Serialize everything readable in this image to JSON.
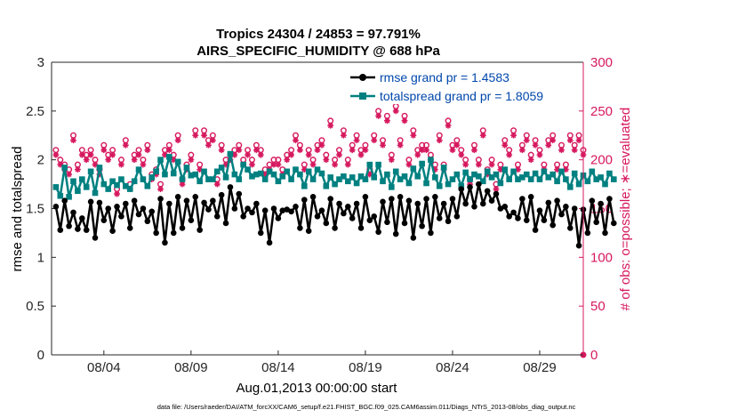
{
  "chart_data": {
    "type": "line",
    "title_line1": "Tropics 24304 / 24853 = 97.791%",
    "title_line2": "AIRS_SPECIFIC_HUMIDITY @ 688 hPa",
    "xlabel": "Aug.01,2013 00:00:00 start",
    "ylabel_left": "rmse and totalspread",
    "ylabel_right": "# of obs: o=possible; ∗=evaluated",
    "footer": "data file: /Users/raeder/DAI/ATM_forcXX/CAM6_setup/f.e21.FHIST_BGC.f09_025.CAM6assim.011/Diags_NTrS_2013-08/obs_diag_output.nc",
    "x_range_days": [
      1,
      31.5
    ],
    "ylim_left": [
      0,
      3
    ],
    "ylim_right": [
      0,
      300
    ],
    "left_ticks": [
      "0",
      "0.5",
      "1",
      "1.5",
      "2",
      "2.5",
      "3"
    ],
    "right_ticks": [
      "0",
      "50",
      "100",
      "150",
      "200",
      "250",
      "300"
    ],
    "x_ticks": [
      {
        "day": 4,
        "label": "08/04"
      },
      {
        "day": 9,
        "label": "08/09"
      },
      {
        "day": 14,
        "label": "08/14"
      },
      {
        "day": 19,
        "label": "08/19"
      },
      {
        "day": 24,
        "label": "08/24"
      },
      {
        "day": 29,
        "label": "08/29"
      }
    ],
    "colors": {
      "rmse": "#000000",
      "spread": "#008080",
      "obs": "#d6185e",
      "axis_left": "#262626",
      "legend_text": "#0047ab"
    },
    "x_start_day": 1.25,
    "x_step_day": 0.25,
    "series": [
      {
        "name": "rmse",
        "legend": "rmse grand pr = 1.4583",
        "values": [
          1.52,
          1.28,
          1.58,
          1.32,
          1.46,
          1.29,
          1.4,
          1.28,
          1.57,
          1.2,
          1.56,
          1.38,
          1.5,
          1.27,
          1.52,
          1.42,
          1.55,
          1.3,
          1.58,
          1.44,
          1.5,
          1.37,
          1.47,
          1.25,
          1.6,
          1.15,
          1.55,
          1.25,
          1.62,
          1.3,
          1.58,
          1.38,
          1.62,
          1.28,
          1.56,
          1.49,
          1.58,
          1.42,
          1.64,
          1.35,
          1.72,
          1.5,
          1.65,
          1.42,
          1.5,
          1.46,
          1.55,
          1.25,
          1.48,
          1.15,
          1.5,
          1.4,
          1.48,
          1.49,
          1.47,
          1.52,
          1.3,
          1.59,
          1.27,
          1.62,
          1.42,
          1.48,
          1.35,
          1.6,
          1.3,
          1.55,
          1.45,
          1.52,
          1.4,
          1.55,
          1.3,
          1.62,
          1.38,
          1.42,
          1.26,
          1.57,
          1.36,
          1.6,
          1.24,
          1.62,
          1.35,
          1.58,
          1.2,
          1.55,
          1.32,
          1.6,
          1.25,
          1.62,
          1.4,
          1.55,
          1.37,
          1.6,
          1.42,
          1.7,
          1.55,
          1.72,
          1.52,
          1.75,
          1.55,
          1.68,
          1.58,
          1.65,
          1.5,
          1.52,
          1.42,
          1.46,
          1.4,
          1.6,
          1.38,
          1.62,
          1.28,
          1.48,
          1.38,
          1.56,
          1.33,
          1.58,
          1.44,
          1.52,
          1.3,
          1.5,
          1.12,
          1.49,
          1.25,
          1.58,
          1.36,
          1.55,
          1.25,
          1.6,
          1.35
        ],
        "marker": "circle"
      },
      {
        "name": "totalspread",
        "legend": "totalspread grand pr = 1.8059",
        "values": [
          1.72,
          1.63,
          1.92,
          1.62,
          1.78,
          1.68,
          1.8,
          1.72,
          1.88,
          1.66,
          1.92,
          1.75,
          1.7,
          1.78,
          1.74,
          1.8,
          1.73,
          1.7,
          1.78,
          1.9,
          1.8,
          1.73,
          1.82,
          1.88,
          2.0,
          1.85,
          2.03,
          1.86,
          1.98,
          1.8,
          1.92,
          1.84,
          1.85,
          1.78,
          1.88,
          1.8,
          1.8,
          1.88,
          1.92,
          1.82,
          2.06,
          1.85,
          1.8,
          1.95,
          1.9,
          1.83,
          1.85,
          1.86,
          1.8,
          1.88,
          1.85,
          1.78,
          1.83,
          1.88,
          1.8,
          1.9,
          1.85,
          1.73,
          1.88,
          1.8,
          1.9,
          1.86,
          1.73,
          1.82,
          1.75,
          1.8,
          1.83,
          1.78,
          1.82,
          1.76,
          1.83,
          1.8,
          1.95,
          1.82,
          1.95,
          1.78,
          1.85,
          1.72,
          1.88,
          1.8,
          1.83,
          1.76,
          1.91,
          1.83,
          1.96,
          1.76,
          2.0,
          1.82,
          1.73,
          1.92,
          1.75,
          1.8,
          1.85,
          1.73,
          1.87,
          1.8,
          1.85,
          1.83,
          1.78,
          1.88,
          1.82,
          1.85,
          1.76,
          1.9,
          1.8,
          1.88,
          1.8,
          1.82,
          1.85,
          1.8,
          1.86,
          1.8,
          1.88,
          1.82,
          1.85,
          1.78,
          1.88,
          1.8,
          1.72,
          1.86,
          1.75,
          1.84,
          1.78,
          1.88,
          1.8,
          1.82,
          1.75,
          1.86,
          1.8
        ],
        "marker": "square"
      },
      {
        "name": "obs possible",
        "axis": "right",
        "marker": "o",
        "values": [
          210,
          200,
          195,
          190,
          225,
          195,
          210,
          205,
          210,
          200,
          190,
          215,
          205,
          210,
          170,
          200,
          220,
          175,
          205,
          210,
          200,
          215,
          185,
          190,
          175,
          210,
          215,
          205,
          225,
          180,
          195,
          205,
          230,
          195,
          230,
          220,
          225,
          180,
          215,
          200,
          205,
          210,
          215,
          200,
          210,
          200,
          215,
          210,
          190,
          195,
          200,
          200,
          190,
          205,
          210,
          225,
          215,
          195,
          210,
          200,
          215,
          220,
          205,
          240,
          200,
          210,
          230,
          200,
          215,
          225,
          210,
          215,
          190,
          225,
          250,
          220,
          245,
          205,
          255,
          220,
          245,
          200,
          230,
          210,
          215,
          215,
          205,
          195,
          225,
          195,
          240,
          215,
          220,
          210,
          200,
          180,
          215,
          200,
          230,
          190,
          200,
          175,
          195,
          220,
          210,
          230,
          195,
          215,
          225,
          205,
          220,
          210,
          195,
          220,
          225,
          195,
          215,
          195,
          225,
          215,
          225,
          210,
          230,
          195,
          220,
          200,
          240,
          225,
          230
        ]
      },
      {
        "name": "obs evaluated",
        "axis": "right",
        "marker": "*",
        "values": [
          205,
          195,
          190,
          185,
          220,
          190,
          205,
          200,
          205,
          195,
          185,
          210,
          200,
          205,
          165,
          195,
          215,
          170,
          200,
          205,
          195,
          210,
          180,
          185,
          170,
          205,
          210,
          200,
          220,
          175,
          190,
          200,
          225,
          190,
          225,
          215,
          220,
          175,
          210,
          195,
          200,
          205,
          210,
          195,
          205,
          195,
          210,
          205,
          185,
          190,
          195,
          195,
          185,
          200,
          205,
          220,
          210,
          190,
          205,
          195,
          210,
          215,
          200,
          235,
          195,
          205,
          225,
          195,
          210,
          220,
          205,
          210,
          185,
          220,
          245,
          215,
          240,
          200,
          250,
          215,
          240,
          195,
          225,
          205,
          210,
          210,
          200,
          190,
          220,
          190,
          235,
          210,
          215,
          205,
          195,
          175,
          210,
          195,
          225,
          185,
          195,
          170,
          190,
          215,
          205,
          225,
          190,
          210,
          220,
          200,
          215,
          205,
          190,
          215,
          220,
          190,
          210,
          190,
          220,
          210,
          220,
          205,
          225,
          190,
          215,
          195,
          235,
          220,
          225
        ]
      }
    ]
  }
}
